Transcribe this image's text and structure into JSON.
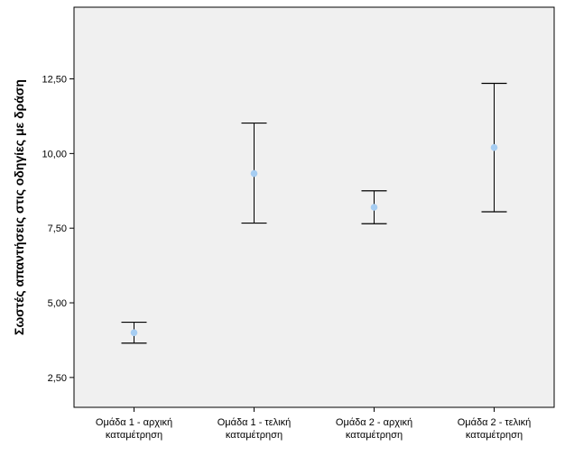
{
  "chart_data": {
    "type": "errorbar",
    "title": "",
    "xlabel": "",
    "ylabel": "Σωστές απαντήσεις στις οδηγίες με δράση",
    "categories": [
      [
        "Ομάδα 1 - αρχική",
        "καταμέτρηση"
      ],
      [
        "Ομάδα 1 - τελική",
        "καταμέτρηση"
      ],
      [
        "Ομάδα 2 - αρχική",
        "καταμέτρηση"
      ],
      [
        "Ομάδα 2 - τελική",
        "καταμέτρηση"
      ]
    ],
    "means": [
      4.0,
      9.33,
      8.2,
      10.2
    ],
    "lower": [
      3.65,
      7.67,
      7.65,
      8.05
    ],
    "upper": [
      4.35,
      11.02,
      8.75,
      12.35
    ],
    "ylim": [
      1.5,
      14.9
    ],
    "yticks": [
      2.5,
      5.0,
      7.5,
      10.0,
      12.5
    ],
    "ytick_labels": [
      "2,50",
      "5,00",
      "7,50",
      "10,00",
      "12,50"
    ],
    "grid": false,
    "legend": "none",
    "colors": {
      "plot_background": "#f0f0f0",
      "point": "#a6cdf2",
      "bar": "#000000",
      "frame": "#000000"
    }
  }
}
